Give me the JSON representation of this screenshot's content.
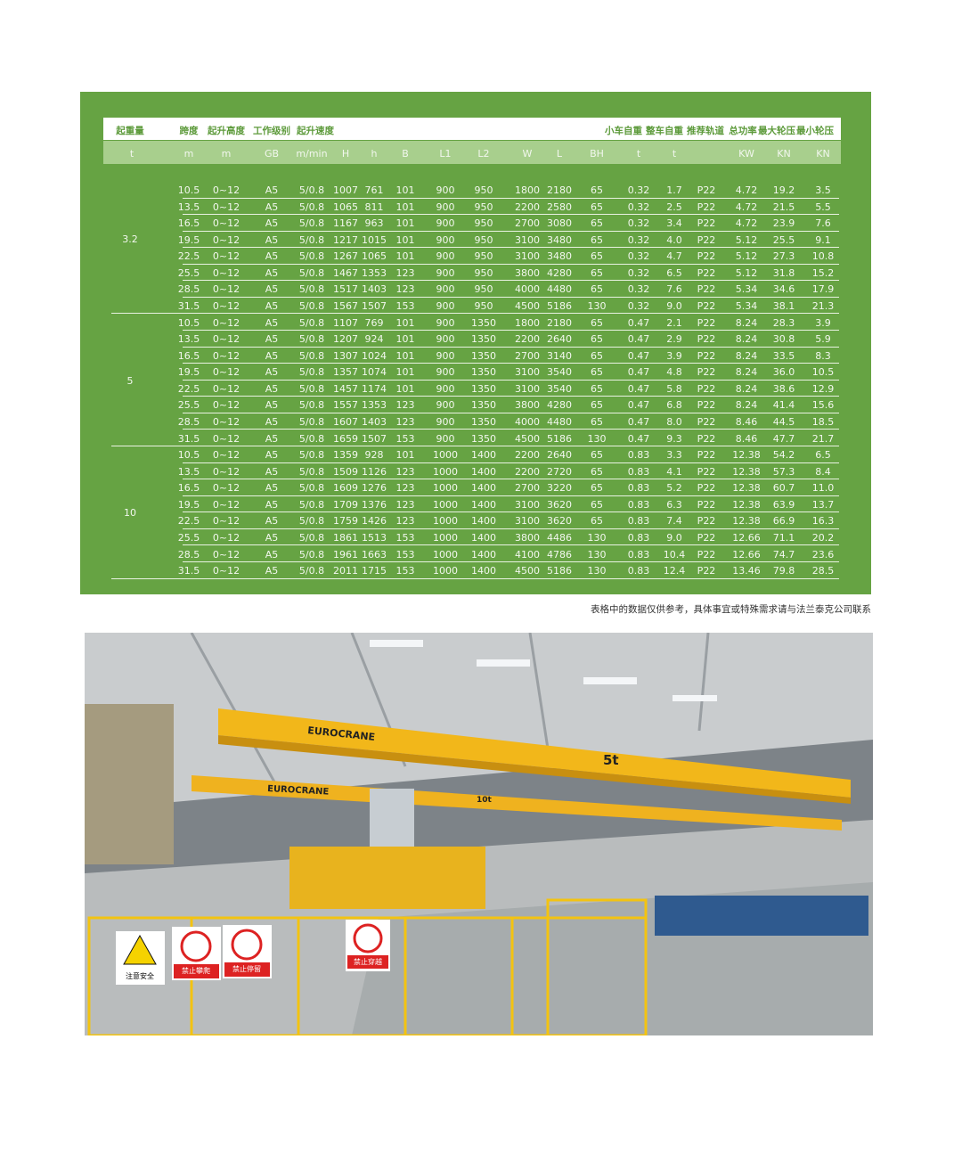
{
  "table": {
    "header": [
      {
        "name": "起重量",
        "unit": "t"
      },
      {
        "name": "跨度",
        "unit": "m"
      },
      {
        "name": "起升高度",
        "unit": "m"
      },
      {
        "name": "工作级别",
        "unit": "GB"
      },
      {
        "name": "起升速度",
        "unit": "m/min"
      },
      {
        "unit": "H"
      },
      {
        "unit": "h"
      },
      {
        "unit": "B"
      },
      {
        "unit": "L1"
      },
      {
        "unit": "L2"
      },
      {
        "unit": "W"
      },
      {
        "unit": "L"
      },
      {
        "unit": "BH"
      },
      {
        "name": "小车自重",
        "unit": "t"
      },
      {
        "name": "整车自重",
        "unit": "t"
      },
      {
        "name": "推荐轨道"
      },
      {
        "name": "总功率",
        "unit": "KW"
      },
      {
        "name": "最大轮压",
        "unit": "KN"
      },
      {
        "name": "最小轮压",
        "unit": "KN"
      }
    ],
    "groups": [
      {
        "capacity": "3.2",
        "rows": [
          [
            "10.5",
            "0~12",
            "A5",
            "5/0.8",
            "1007",
            "761",
            "101",
            "900",
            "950",
            "1800",
            "2180",
            "65",
            "0.32",
            "1.7",
            "P22",
            "4.72",
            "19.2",
            "3.5"
          ],
          [
            "13.5",
            "0~12",
            "A5",
            "5/0.8",
            "1065",
            "811",
            "101",
            "900",
            "950",
            "2200",
            "2580",
            "65",
            "0.32",
            "2.5",
            "P22",
            "4.72",
            "21.5",
            "5.5"
          ],
          [
            "16.5",
            "0~12",
            "A5",
            "5/0.8",
            "1167",
            "963",
            "101",
            "900",
            "950",
            "2700",
            "3080",
            "65",
            "0.32",
            "3.4",
            "P22",
            "4.72",
            "23.9",
            "7.6"
          ],
          [
            "19.5",
            "0~12",
            "A5",
            "5/0.8",
            "1217",
            "1015",
            "101",
            "900",
            "950",
            "3100",
            "3480",
            "65",
            "0.32",
            "4.0",
            "P22",
            "5.12",
            "25.5",
            "9.1"
          ],
          [
            "22.5",
            "0~12",
            "A5",
            "5/0.8",
            "1267",
            "1065",
            "101",
            "900",
            "950",
            "3100",
            "3480",
            "65",
            "0.32",
            "4.7",
            "P22",
            "5.12",
            "27.3",
            "10.8"
          ],
          [
            "25.5",
            "0~12",
            "A5",
            "5/0.8",
            "1467",
            "1353",
            "123",
            "900",
            "950",
            "3800",
            "4280",
            "65",
            "0.32",
            "6.5",
            "P22",
            "5.12",
            "31.8",
            "15.2"
          ],
          [
            "28.5",
            "0~12",
            "A5",
            "5/0.8",
            "1517",
            "1403",
            "123",
            "900",
            "950",
            "4000",
            "4480",
            "65",
            "0.32",
            "7.6",
            "P22",
            "5.34",
            "34.6",
            "17.9"
          ],
          [
            "31.5",
            "0~12",
            "A5",
            "5/0.8",
            "1567",
            "1507",
            "153",
            "900",
            "950",
            "4500",
            "5186",
            "130",
            "0.32",
            "9.0",
            "P22",
            "5.34",
            "38.1",
            "21.3"
          ]
        ]
      },
      {
        "capacity": "5",
        "rows": [
          [
            "10.5",
            "0~12",
            "A5",
            "5/0.8",
            "1107",
            "769",
            "101",
            "900",
            "1350",
            "1800",
            "2180",
            "65",
            "0.47",
            "2.1",
            "P22",
            "8.24",
            "28.3",
            "3.9"
          ],
          [
            "13.5",
            "0~12",
            "A5",
            "5/0.8",
            "1207",
            "924",
            "101",
            "900",
            "1350",
            "2200",
            "2640",
            "65",
            "0.47",
            "2.9",
            "P22",
            "8.24",
            "30.8",
            "5.9"
          ],
          [
            "16.5",
            "0~12",
            "A5",
            "5/0.8",
            "1307",
            "1024",
            "101",
            "900",
            "1350",
            "2700",
            "3140",
            "65",
            "0.47",
            "3.9",
            "P22",
            "8.24",
            "33.5",
            "8.3"
          ],
          [
            "19.5",
            "0~12",
            "A5",
            "5/0.8",
            "1357",
            "1074",
            "101",
            "900",
            "1350",
            "3100",
            "3540",
            "65",
            "0.47",
            "4.8",
            "P22",
            "8.24",
            "36.0",
            "10.5"
          ],
          [
            "22.5",
            "0~12",
            "A5",
            "5/0.8",
            "1457",
            "1174",
            "101",
            "900",
            "1350",
            "3100",
            "3540",
            "65",
            "0.47",
            "5.8",
            "P22",
            "8.24",
            "38.6",
            "12.9"
          ],
          [
            "25.5",
            "0~12",
            "A5",
            "5/0.8",
            "1557",
            "1353",
            "123",
            "900",
            "1350",
            "3800",
            "4280",
            "65",
            "0.47",
            "6.8",
            "P22",
            "8.24",
            "41.4",
            "15.6"
          ],
          [
            "28.5",
            "0~12",
            "A5",
            "5/0.8",
            "1607",
            "1403",
            "123",
            "900",
            "1350",
            "4000",
            "4480",
            "65",
            "0.47",
            "8.0",
            "P22",
            "8.46",
            "44.5",
            "18.5"
          ],
          [
            "31.5",
            "0~12",
            "A5",
            "5/0.8",
            "1659",
            "1507",
            "153",
            "900",
            "1350",
            "4500",
            "5186",
            "130",
            "0.47",
            "9.3",
            "P22",
            "8.46",
            "47.7",
            "21.7"
          ]
        ]
      },
      {
        "capacity": "10",
        "rows": [
          [
            "10.5",
            "0~12",
            "A5",
            "5/0.8",
            "1359",
            "928",
            "101",
            "1000",
            "1400",
            "2200",
            "2640",
            "65",
            "0.83",
            "3.3",
            "P22",
            "12.38",
            "54.2",
            "6.5"
          ],
          [
            "13.5",
            "0~12",
            "A5",
            "5/0.8",
            "1509",
            "1126",
            "123",
            "1000",
            "1400",
            "2200",
            "2720",
            "65",
            "0.83",
            "4.1",
            "P22",
            "12.38",
            "57.3",
            "8.4"
          ],
          [
            "16.5",
            "0~12",
            "A5",
            "5/0.8",
            "1609",
            "1276",
            "123",
            "1000",
            "1400",
            "2700",
            "3220",
            "65",
            "0.83",
            "5.2",
            "P22",
            "12.38",
            "60.7",
            "11.0"
          ],
          [
            "19.5",
            "0~12",
            "A5",
            "5/0.8",
            "1709",
            "1376",
            "123",
            "1000",
            "1400",
            "3100",
            "3620",
            "65",
            "0.83",
            "6.3",
            "P22",
            "12.38",
            "63.9",
            "13.7"
          ],
          [
            "22.5",
            "0~12",
            "A5",
            "5/0.8",
            "1759",
            "1426",
            "123",
            "1000",
            "1400",
            "3100",
            "3620",
            "65",
            "0.83",
            "7.4",
            "P22",
            "12.38",
            "66.9",
            "16.3"
          ],
          [
            "25.5",
            "0~12",
            "A5",
            "5/0.8",
            "1861",
            "1513",
            "153",
            "1000",
            "1400",
            "3800",
            "4486",
            "130",
            "0.83",
            "9.0",
            "P22",
            "12.66",
            "71.1",
            "20.2"
          ],
          [
            "28.5",
            "0~12",
            "A5",
            "5/0.8",
            "1961",
            "1663",
            "153",
            "1000",
            "1400",
            "4100",
            "4786",
            "130",
            "0.83",
            "10.4",
            "P22",
            "12.66",
            "74.7",
            "23.6"
          ],
          [
            "31.5",
            "0~12",
            "A5",
            "5/0.8",
            "2011",
            "1715",
            "153",
            "1000",
            "1400",
            "4500",
            "5186",
            "130",
            "0.83",
            "12.4",
            "P22",
            "13.46",
            "79.8",
            "28.5"
          ]
        ]
      }
    ],
    "note": "表格中的数据仅供参考，具体事宜或特殊需求请与法兰泰克公司联系"
  },
  "photo": {
    "brand_front": "EUROCRANE",
    "brand_back": "EUROCRANE",
    "load_front": "5t",
    "load_back": "10t",
    "signs": [
      "注意安全",
      "禁止攀爬",
      "禁止停留",
      "禁止穿越"
    ]
  }
}
